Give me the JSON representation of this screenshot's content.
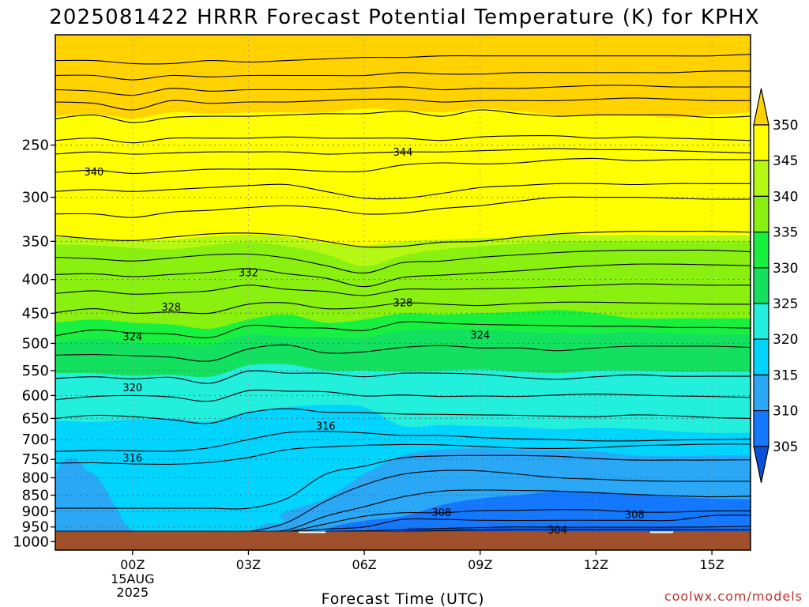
{
  "title": "2025081422 HRRR Forecast Potential Temperature (K) for KPHX",
  "xlabel": "Forecast Time (UTC)",
  "credit": "coolwx.com/models",
  "colors": {
    "c300": "#0a50d8",
    "c305": "#1478ff",
    "c310": "#2aa8f5",
    "c315": "#00d4ff",
    "c320": "#22f0dc",
    "c325": "#14e060",
    "c330": "#18f040",
    "c335": "#8af010",
    "c340": "#b4f814",
    "c345": "#ffff00",
    "c350": "#ffd200",
    "ground": "#a0502a",
    "credit": "#c0302a"
  },
  "chart_data": {
    "type": "contour",
    "variable": "Potential Temperature (K)",
    "station": "KPHX",
    "model": "HRRR",
    "run": "2025081422",
    "x_tick_labels": [
      "00Z",
      "03Z",
      "06Z",
      "09Z",
      "12Z",
      "15Z"
    ],
    "x_first_tick_extra": [
      "15AUG",
      "2025"
    ],
    "x_tick_hours": [
      0,
      3,
      6,
      9,
      12,
      15
    ],
    "xlim": [
      -2,
      16
    ],
    "ylim": [
      1030,
      170
    ],
    "y_scale": "log pressure (hPa)",
    "y_ticks": [
      250,
      300,
      350,
      400,
      450,
      500,
      550,
      600,
      650,
      700,
      750,
      800,
      850,
      900,
      950,
      1000
    ],
    "grid": "dotted",
    "surface_pressure_hPa": 965,
    "colorbar": {
      "ticks": [
        305,
        310,
        315,
        320,
        325,
        330,
        335,
        340,
        345,
        350
      ],
      "extend": "both"
    },
    "contour_labels": [
      {
        "value": "344",
        "hour": 7.0,
        "p": 256
      },
      {
        "value": "340",
        "hour": -1.0,
        "p": 274
      },
      {
        "value": "332",
        "hour": 3.0,
        "p": 390
      },
      {
        "value": "328",
        "hour": 1.0,
        "p": 440
      },
      {
        "value": "328",
        "hour": 7.0,
        "p": 433
      },
      {
        "value": "324",
        "hour": 0.0,
        "p": 488
      },
      {
        "value": "324",
        "hour": 9.0,
        "p": 485
      },
      {
        "value": "320",
        "hour": 0.0,
        "p": 583
      },
      {
        "value": "316",
        "hour": 5.0,
        "p": 667
      },
      {
        "value": "316",
        "hour": 0.0,
        "p": 745
      },
      {
        "value": "308",
        "hour": 8.0,
        "p": 902
      },
      {
        "value": "308",
        "hour": 13.0,
        "p": 908
      },
      {
        "value": "304",
        "hour": 11.0,
        "p": 958
      }
    ]
  }
}
